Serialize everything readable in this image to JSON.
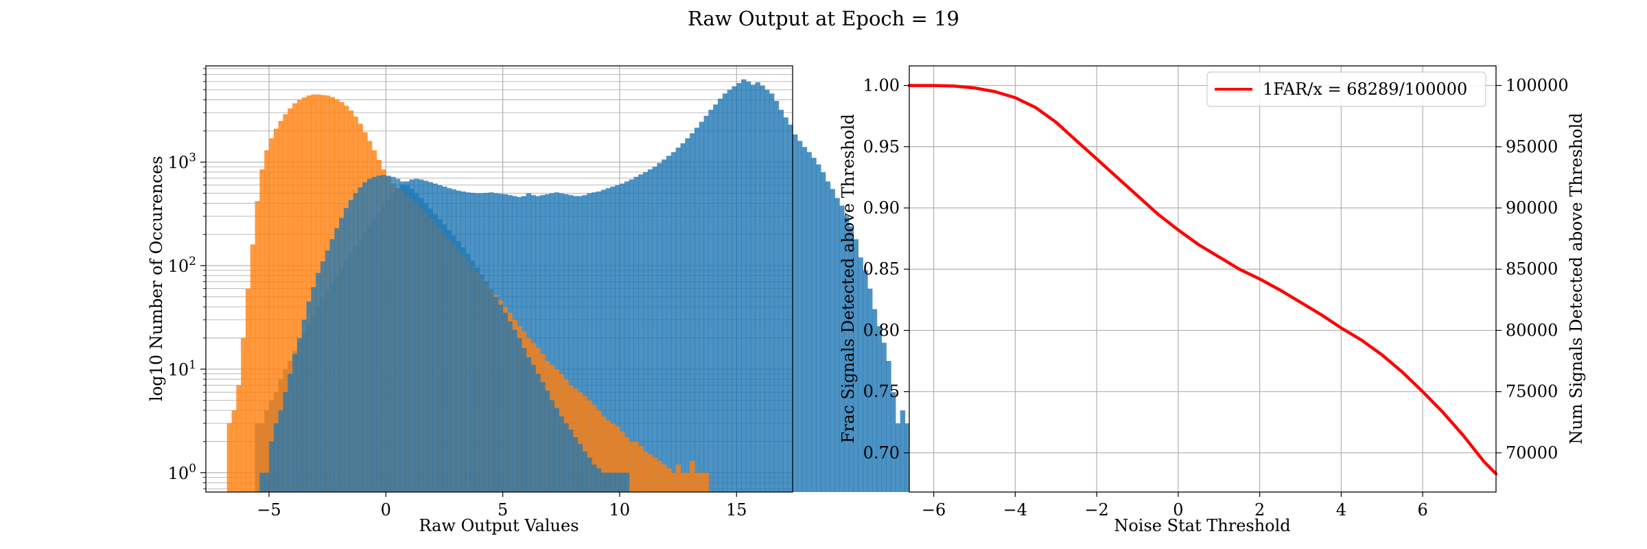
{
  "figure_title": "Raw Output at Epoch = 19",
  "colors": {
    "signal": "#1f77b4",
    "noise": "#ff7f0e",
    "curve": "#ff0000",
    "grid": "#b0b0b0"
  },
  "chart_data": [
    {
      "type": "histogram",
      "xlabel": "Raw Output Values",
      "ylabel": "log10 Number of Occurences",
      "yscale": "log",
      "xlim": [
        -7.7,
        17.4
      ],
      "ylim": [
        0.65,
        8500
      ],
      "x_ticks": [
        {
          "value": -5,
          "label": "−5"
        },
        {
          "value": 0,
          "label": "0"
        },
        {
          "value": 5,
          "label": "5"
        },
        {
          "value": 10,
          "label": "10"
        },
        {
          "value": 15,
          "label": "15"
        }
      ],
      "y_ticks": [
        {
          "value": 1,
          "base": "10",
          "exp": "0"
        },
        {
          "value": 10,
          "base": "10",
          "exp": "1"
        },
        {
          "value": 100,
          "base": "10",
          "exp": "2"
        },
        {
          "value": 1000,
          "base": "10",
          "exp": "3"
        }
      ],
      "grid": true,
      "bin_width": 0.2,
      "bin_start": -6.8,
      "series": [
        {
          "color": "signal",
          "alpha": 0.8,
          "counts": [
            0,
            0,
            0,
            0,
            0,
            0,
            3,
            3,
            4,
            5,
            6,
            8,
            10,
            12,
            15,
            18,
            22,
            27,
            33,
            40,
            48,
            57,
            68,
            80,
            95,
            112,
            132,
            155,
            180,
            210,
            245,
            285,
            330,
            380,
            440,
            500,
            560,
            610,
            650,
            680,
            690,
            680,
            660,
            640,
            620,
            600,
            580,
            560,
            545,
            530,
            520,
            510,
            505,
            500,
            500,
            505,
            510,
            500,
            495,
            490,
            480,
            470,
            460,
            470,
            500,
            480,
            470,
            480,
            490,
            500,
            510,
            500,
            490,
            480,
            470,
            470,
            480,
            500,
            510,
            520,
            540,
            560,
            580,
            600,
            620,
            650,
            680,
            720,
            760,
            800,
            850,
            900,
            980,
            1060,
            1150,
            1250,
            1380,
            1520,
            1700,
            1900,
            2150,
            2450,
            2800,
            3200,
            3600,
            4100,
            4600,
            5000,
            5400,
            5800,
            6300,
            6000,
            5600,
            5900,
            5500,
            5000,
            4600,
            3900,
            3200,
            2700,
            2300,
            1850,
            1600,
            1400,
            1250,
            1100,
            950,
            800,
            650,
            550,
            450,
            380,
            300,
            240,
            180,
            120,
            90,
            60,
            38,
            26,
            18,
            12,
            6,
            3,
            4,
            3,
            2,
            1,
            3
          ]
        },
        {
          "color": "noise",
          "alpha": 0.8,
          "counts": [
            3,
            4,
            7,
            20,
            60,
            160,
            420,
            850,
            1300,
            1700,
            2100,
            2500,
            2900,
            3300,
            3700,
            4000,
            4200,
            4400,
            4500,
            4500,
            4450,
            4400,
            4250,
            4050,
            3800,
            3500,
            3150,
            2750,
            2350,
            1950,
            1600,
            1300,
            1050,
            850,
            720,
            620,
            560,
            520,
            480,
            440,
            400,
            360,
            320,
            290,
            260,
            230,
            200,
            180,
            160,
            140,
            125,
            110,
            98,
            86,
            76,
            67,
            59,
            52,
            46,
            40,
            35,
            30,
            26,
            23,
            20,
            18,
            16,
            14,
            12,
            11,
            10,
            9,
            8,
            7,
            6.5,
            6,
            5.5,
            5,
            4.5,
            4,
            3.5,
            3.2,
            3,
            2.8,
            2.5,
            2.2,
            2,
            2,
            1.8,
            1.6,
            1.5,
            1.4,
            1.3,
            1.2,
            1.1,
            1,
            1.2,
            1,
            1,
            1.3,
            1,
            1,
            1
          ]
        },
        {
          "color": "signal",
          "alpha": 0.75,
          "counts": [
            0,
            0,
            0,
            0,
            0,
            0,
            0,
            1,
            1,
            2,
            3,
            4,
            6,
            9,
            14,
            20,
            30,
            45,
            62,
            85,
            110,
            140,
            180,
            230,
            290,
            360,
            430,
            500,
            570,
            640,
            690,
            720,
            740,
            750,
            740,
            720,
            690,
            650,
            600,
            550,
            500,
            450,
            400,
            355,
            315,
            280,
            250,
            220,
            195,
            172,
            150,
            130,
            112,
            96,
            82,
            70,
            59,
            50,
            42,
            35,
            29,
            24,
            20,
            16,
            13,
            11,
            9,
            7.5,
            6.2,
            5,
            4.2,
            3.5,
            3,
            2.6,
            2.2,
            1.9,
            1.6,
            1.4,
            1.2,
            1.1,
            1,
            1,
            1,
            1,
            1,
            1
          ]
        }
      ]
    },
    {
      "type": "line",
      "xlabel": "Noise Stat Threshold",
      "ylabel_left": "Frac Signals Detected above Threshold",
      "ylabel_right": "Num Signals Detected above Threshold",
      "xlim": [
        -6.6,
        7.8
      ],
      "ylim_left": [
        0.668,
        1.016
      ],
      "ylim_right": [
        66800,
        101600
      ],
      "x_ticks": [
        {
          "value": -6,
          "label": "−6"
        },
        {
          "value": -4,
          "label": "−4"
        },
        {
          "value": -2,
          "label": "−2"
        },
        {
          "value": 0,
          "label": "0"
        },
        {
          "value": 2,
          "label": "2"
        },
        {
          "value": 4,
          "label": "4"
        },
        {
          "value": 6,
          "label": "6"
        }
      ],
      "y_ticks_left": [
        {
          "value": 0.7,
          "label": "0.70"
        },
        {
          "value": 0.75,
          "label": "0.75"
        },
        {
          "value": 0.8,
          "label": "0.80"
        },
        {
          "value": 0.85,
          "label": "0.85"
        },
        {
          "value": 0.9,
          "label": "0.90"
        },
        {
          "value": 0.95,
          "label": "0.95"
        },
        {
          "value": 1.0,
          "label": "1.00"
        }
      ],
      "y_ticks_right": [
        {
          "value": 70000,
          "label": "70000"
        },
        {
          "value": 75000,
          "label": "75000"
        },
        {
          "value": 80000,
          "label": "80000"
        },
        {
          "value": 85000,
          "label": "85000"
        },
        {
          "value": 90000,
          "label": "90000"
        },
        {
          "value": 95000,
          "label": "95000"
        },
        {
          "value": 100000,
          "label": "100000"
        }
      ],
      "grid": true,
      "legend_position": "top-right",
      "series": [
        {
          "name": "1FAR/x = 68289/100000",
          "color": "curve",
          "x": [
            -6.6,
            -6,
            -5.5,
            -5,
            -4.5,
            -4,
            -3.5,
            -3,
            -2.5,
            -2,
            -1.5,
            -1,
            -0.5,
            0,
            0.5,
            1,
            1.5,
            2,
            2.5,
            3,
            3.5,
            4,
            4.5,
            5,
            5.5,
            6,
            6.5,
            7,
            7.5,
            7.8
          ],
          "y": [
            1.0,
            1.0,
            0.9995,
            0.998,
            0.995,
            0.99,
            0.982,
            0.97,
            0.955,
            0.94,
            0.925,
            0.91,
            0.895,
            0.882,
            0.87,
            0.86,
            0.85,
            0.842,
            0.833,
            0.823,
            0.813,
            0.802,
            0.792,
            0.78,
            0.766,
            0.75,
            0.733,
            0.714,
            0.693,
            0.68289
          ]
        }
      ]
    }
  ]
}
